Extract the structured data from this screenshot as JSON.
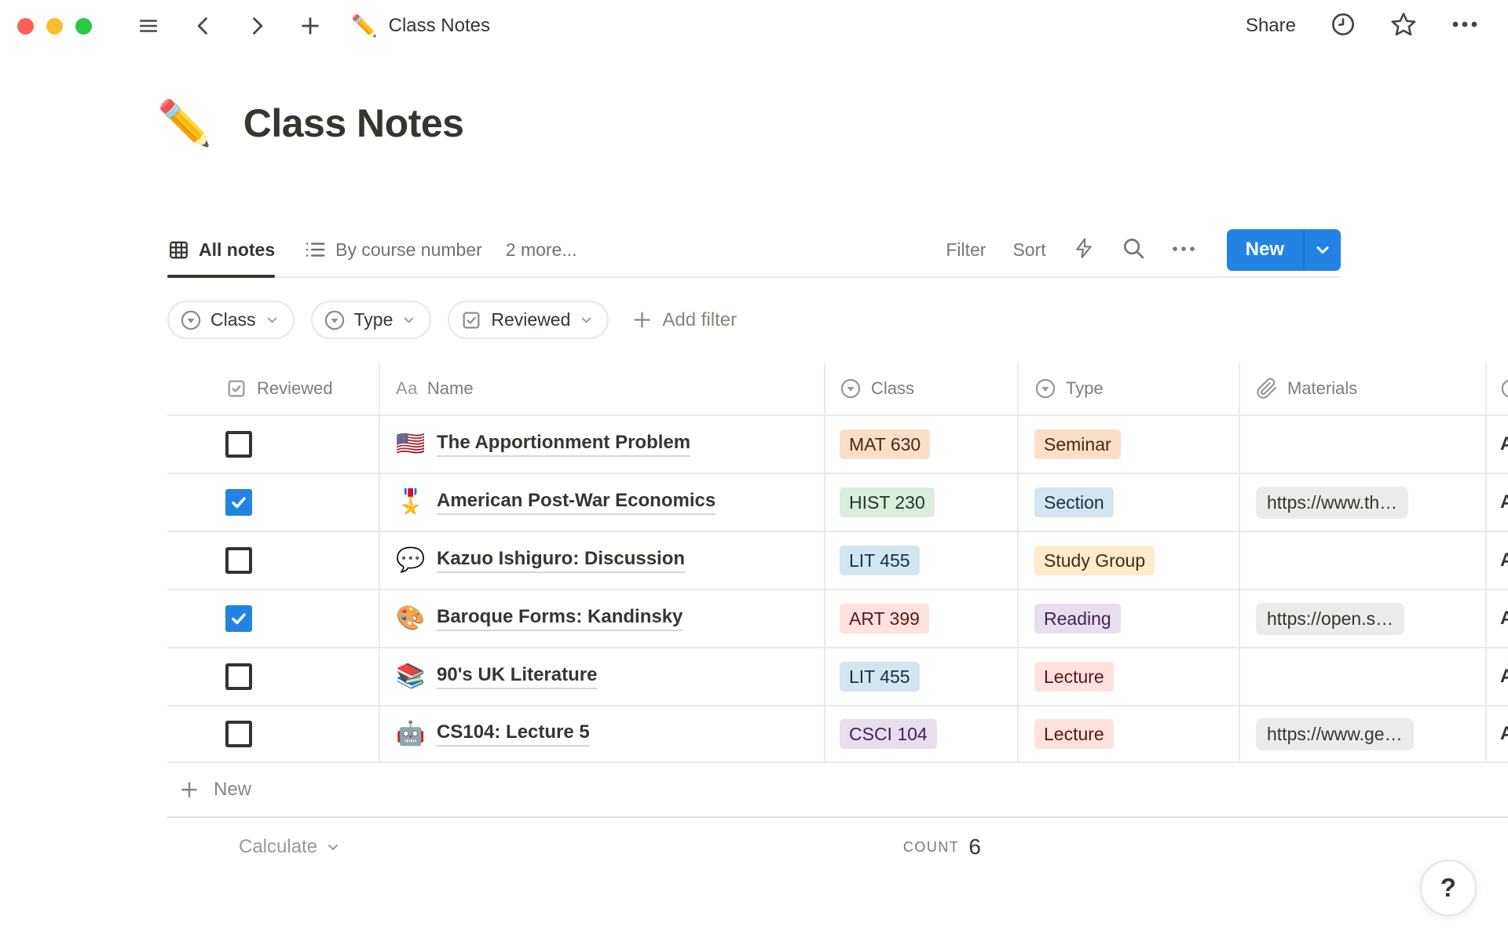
{
  "topbar": {
    "doc_emoji": "✏️",
    "doc_title": "Class Notes",
    "share_label": "Share"
  },
  "page": {
    "emoji": "✏️",
    "title": "Class Notes"
  },
  "views": {
    "tabs": [
      {
        "label": "All notes",
        "icon": "table",
        "active": true
      },
      {
        "label": "By course number",
        "icon": "list",
        "active": false
      }
    ],
    "more_label": "2 more...",
    "filter_label": "Filter",
    "sort_label": "Sort",
    "new_button_label": "New"
  },
  "filters": {
    "chips": [
      {
        "label": "Class",
        "icon": "select"
      },
      {
        "label": "Type",
        "icon": "select"
      },
      {
        "label": "Reviewed",
        "icon": "checkbox"
      }
    ],
    "add_filter_label": "Add filter"
  },
  "table": {
    "columns": [
      {
        "label": "Reviewed",
        "icon": "checkbox"
      },
      {
        "label": "Name",
        "icon": "text"
      },
      {
        "label": "Class",
        "icon": "select"
      },
      {
        "label": "Type",
        "icon": "select"
      },
      {
        "label": "Materials",
        "icon": "paperclip"
      }
    ],
    "rows": [
      {
        "reviewed": false,
        "emoji": "🇺🇸",
        "name": "The Apportionment Problem",
        "class": {
          "label": "MAT 630",
          "color": "orange"
        },
        "type": {
          "label": "Seminar",
          "color": "orange"
        },
        "materials": ""
      },
      {
        "reviewed": true,
        "emoji": "🎖️",
        "name": "American Post-War Economics",
        "class": {
          "label": "HIST 230",
          "color": "green"
        },
        "type": {
          "label": "Section",
          "color": "blue"
        },
        "materials": "https://www.th…"
      },
      {
        "reviewed": false,
        "emoji": "💬",
        "name": "Kazuo Ishiguro: Discussion",
        "class": {
          "label": "LIT 455",
          "color": "blue"
        },
        "type": {
          "label": "Study Group",
          "color": "yellow"
        },
        "materials": ""
      },
      {
        "reviewed": true,
        "emoji": "🎨",
        "name": "Baroque Forms: Kandinsky",
        "class": {
          "label": "ART 399",
          "color": "red"
        },
        "type": {
          "label": "Reading",
          "color": "purple"
        },
        "materials": "https://open.s…"
      },
      {
        "reviewed": false,
        "emoji": "📚",
        "name": "90's UK Literature",
        "class": {
          "label": "LIT 455",
          "color": "blue"
        },
        "type": {
          "label": "Lecture",
          "color": "red"
        },
        "materials": ""
      },
      {
        "reviewed": false,
        "emoji": "🤖",
        "name": "CS104: Lecture 5",
        "class": {
          "label": "CSCI 104",
          "color": "purple"
        },
        "type": {
          "label": "Lecture",
          "color": "red"
        },
        "materials": "https://www.ge…"
      }
    ],
    "overflow_column": {
      "header_icon": "select",
      "visible_glyph": "A"
    },
    "new_row_label": "New",
    "footer": {
      "calculate_label": "Calculate",
      "count_label": "COUNT",
      "count_value": "6"
    }
  },
  "help_label": "?",
  "colors": {
    "accent_blue": "#2383E2",
    "traffic_red": "#FF5F57",
    "traffic_yellow": "#FEBC2E",
    "traffic_green": "#28C840",
    "tags": {
      "orange": {
        "bg": "#FADEC9",
        "text": "#49290E"
      },
      "green": {
        "bg": "#DBEDDB",
        "text": "#1C3829"
      },
      "blue": {
        "bg": "#D3E5EF",
        "text": "#183347"
      },
      "yellow": {
        "bg": "#FDECC8",
        "text": "#402C1B"
      },
      "red": {
        "bg": "#FFE2DD",
        "text": "#5D1715"
      },
      "purple": {
        "bg": "#E8DEEE",
        "text": "#412454"
      }
    }
  }
}
